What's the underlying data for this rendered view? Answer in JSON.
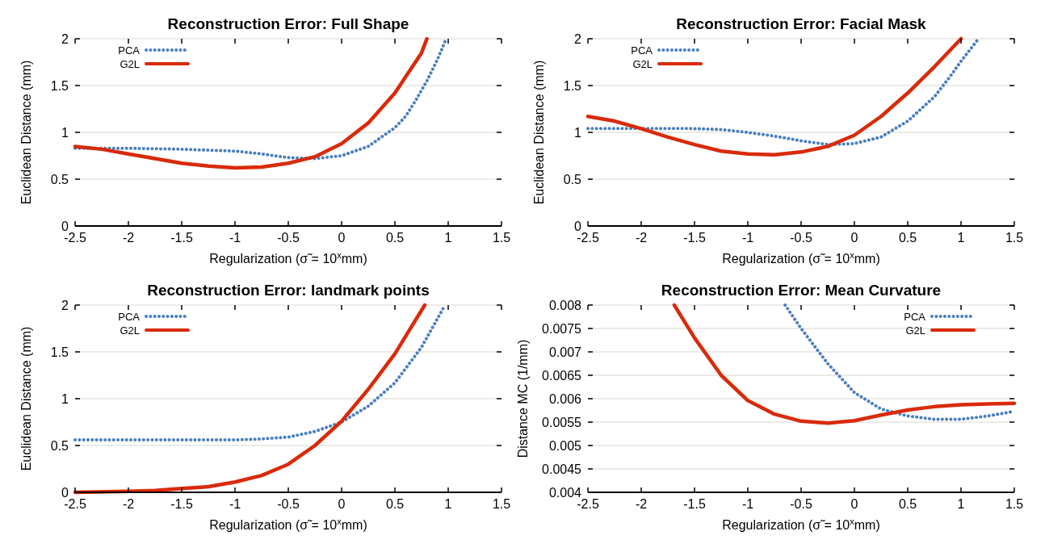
{
  "chart_data": [
    {
      "type": "line",
      "title": "Reconstruction Error: Full Shape",
      "xlabel": "Regularization (σ̃ = 10$^{x}$mm)",
      "ylabel": "Euclidean Distance (mm)",
      "xlim": [
        -2.5,
        1.5
      ],
      "xticks": [
        -2.5,
        -2,
        -1.5,
        -1,
        -0.5,
        0,
        0.5,
        1,
        1.5
      ],
      "ylim": [
        0,
        2
      ],
      "yticks": [
        0,
        0.5,
        1,
        1.5,
        2
      ],
      "grid": "y",
      "legend": "top left",
      "series": [
        {
          "name": "PCA",
          "color": "#4a7fbf",
          "line_style": "dotted",
          "x": [
            -2.5,
            -2,
            -1.5,
            -1,
            -0.75,
            -0.5,
            -0.25,
            0,
            0.25,
            0.5,
            0.6,
            0.7,
            0.8,
            0.9,
            0.97
          ],
          "values": [
            0.83,
            0.83,
            0.82,
            0.8,
            0.77,
            0.73,
            0.72,
            0.75,
            0.85,
            1.05,
            1.17,
            1.35,
            1.55,
            1.78,
            1.97
          ]
        },
        {
          "name": "G2L",
          "color": "#d92a0a",
          "line_style": "solid",
          "x": [
            -2.5,
            -2.25,
            -2,
            -1.75,
            -1.5,
            -1.25,
            -1,
            -0.75,
            -0.5,
            -0.25,
            0,
            0.25,
            0.5,
            0.75,
            0.8
          ],
          "values": [
            0.85,
            0.82,
            0.77,
            0.72,
            0.67,
            0.64,
            0.62,
            0.63,
            0.67,
            0.74,
            0.88,
            1.1,
            1.42,
            1.85,
            2.0
          ]
        }
      ]
    },
    {
      "type": "line",
      "title": "Reconstruction Error: Facial Mask",
      "xlabel": "Regularization (σ̃ = 10$^{x}$mm)",
      "ylabel": "Euclidean Distance (mm)",
      "xlim": [
        -2.5,
        1.5
      ],
      "xticks": [
        -2.5,
        -2,
        -1.5,
        -1,
        -0.5,
        0,
        0.5,
        1,
        1.5
      ],
      "ylim": [
        0,
        2
      ],
      "yticks": [
        0,
        0.5,
        1,
        1.5,
        2
      ],
      "grid": "y",
      "legend": "top left",
      "series": [
        {
          "name": "PCA",
          "color": "#4a7fbf",
          "line_style": "dotted",
          "x": [
            -2.5,
            -2,
            -1.5,
            -1.25,
            -1,
            -0.75,
            -0.5,
            -0.25,
            0,
            0.25,
            0.5,
            0.75,
            0.9,
            1,
            1.15
          ],
          "values": [
            1.04,
            1.04,
            1.04,
            1.03,
            1.0,
            0.96,
            0.91,
            0.87,
            0.88,
            0.95,
            1.12,
            1.38,
            1.6,
            1.76,
            1.98
          ]
        },
        {
          "name": "G2L",
          "color": "#d92a0a",
          "line_style": "solid",
          "x": [
            -2.5,
            -2.25,
            -2,
            -1.75,
            -1.5,
            -1.25,
            -1,
            -0.75,
            -0.5,
            -0.25,
            0,
            0.25,
            0.5,
            0.75,
            1
          ],
          "values": [
            1.17,
            1.12,
            1.04,
            0.95,
            0.87,
            0.8,
            0.77,
            0.76,
            0.79,
            0.85,
            0.97,
            1.17,
            1.42,
            1.7,
            2.0
          ]
        }
      ]
    },
    {
      "type": "line",
      "title": "Reconstruction Error: landmark points",
      "xlabel": "Regularization (σ̃ = 10$^{x}$mm)",
      "ylabel": "Euclidean Distance (mm)",
      "xlim": [
        -2.5,
        1.5
      ],
      "xticks": [
        -2.5,
        -2,
        -1.5,
        -1,
        -0.5,
        0,
        0.5,
        1,
        1.5
      ],
      "ylim": [
        0,
        2
      ],
      "yticks": [
        0,
        0.5,
        1,
        1.5,
        2
      ],
      "grid": "y",
      "legend": "top left",
      "series": [
        {
          "name": "PCA",
          "color": "#4a7fbf",
          "line_style": "dotted",
          "x": [
            -2.5,
            -1,
            -0.75,
            -0.5,
            -0.25,
            0,
            0.25,
            0.5,
            0.75,
            0.97
          ],
          "values": [
            0.56,
            0.56,
            0.57,
            0.59,
            0.65,
            0.75,
            0.92,
            1.17,
            1.55,
            2.0
          ]
        },
        {
          "name": "G2L",
          "color": "#d92a0a",
          "line_style": "solid",
          "x": [
            -2.5,
            -2,
            -1.75,
            -1.5,
            -1.25,
            -1,
            -0.75,
            -0.5,
            -0.25,
            0,
            0.25,
            0.5,
            0.78
          ],
          "values": [
            0,
            0.01,
            0.02,
            0.04,
            0.06,
            0.11,
            0.18,
            0.3,
            0.5,
            0.76,
            1.1,
            1.48,
            2.0
          ]
        }
      ]
    },
    {
      "type": "line",
      "title": "Reconstruction Error: Mean Curvature",
      "xlabel": "Regularization (σ̃ = 10$^{x}$mm)",
      "ylabel": "Distance MC (1/mm)",
      "xlim": [
        -2.5,
        1.5
      ],
      "xticks": [
        -2.5,
        -2,
        -1.5,
        -1,
        -0.5,
        0,
        0.5,
        1,
        1.5
      ],
      "ylim": [
        0.004,
        0.008
      ],
      "yticks": [
        0.004,
        0.0045,
        0.005,
        0.0055,
        0.006,
        0.0065,
        0.007,
        0.0075,
        0.008
      ],
      "grid": "y",
      "legend": "top right",
      "series": [
        {
          "name": "PCA",
          "color": "#4a7fbf",
          "line_style": "dotted",
          "x": [
            -0.65,
            -0.5,
            -0.25,
            0,
            0.25,
            0.5,
            0.75,
            1,
            1.25,
            1.5
          ],
          "values": [
            0.008,
            0.0075,
            0.00675,
            0.00613,
            0.00578,
            0.00563,
            0.00556,
            0.00556,
            0.00563,
            0.00573
          ]
        },
        {
          "name": "G2L",
          "color": "#d92a0a",
          "line_style": "solid",
          "x": [
            -1.69,
            -1.5,
            -1.25,
            -1,
            -0.75,
            -0.5,
            -0.25,
            0,
            0.25,
            0.5,
            0.75,
            1,
            1.25,
            1.5
          ],
          "values": [
            0.008,
            0.0073,
            0.0065,
            0.00596,
            0.00567,
            0.00552,
            0.00548,
            0.00553,
            0.00565,
            0.00576,
            0.00583,
            0.00587,
            0.00589,
            0.0059
          ]
        }
      ]
    }
  ]
}
